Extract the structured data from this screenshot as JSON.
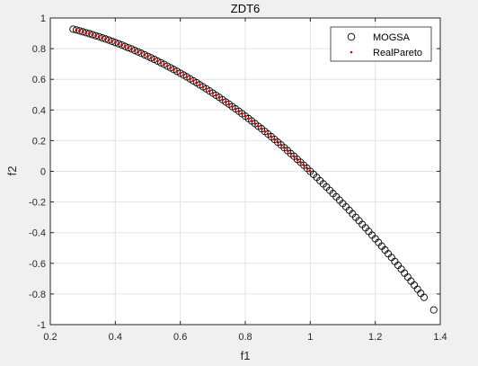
{
  "figure": {
    "background": "#f0f0f0"
  },
  "chart_data": {
    "type": "scatter",
    "title": "ZDT6",
    "xlabel": "f1",
    "ylabel": "f2",
    "xlim": [
      0.2,
      1.4
    ],
    "ylim": [
      -1,
      1
    ],
    "xticks": [
      0.2,
      0.4,
      0.6,
      0.8,
      1.0,
      1.2,
      1.4
    ],
    "xtick_labels": [
      "0.2",
      "0.4",
      "0.6",
      "0.8",
      "1",
      "1.2",
      "1.4"
    ],
    "yticks": [
      -1,
      -0.8,
      -0.6,
      -0.4,
      -0.2,
      0,
      0.2,
      0.4,
      0.6,
      0.8,
      1
    ],
    "ytick_labels": [
      "-1",
      "-0.8",
      "-0.6",
      "-0.4",
      "-0.2",
      "0",
      "0.2",
      "0.4",
      "0.6",
      "0.8",
      "1"
    ],
    "grid": true,
    "legend_position": "top-right",
    "colors": {
      "axes_bg": "#ffffff",
      "grid": "#e3e3e3",
      "axis": "#262626",
      "mogsa": "#000000",
      "realpareto": "#e00000"
    },
    "series": [
      {
        "name": "MOGSA",
        "marker": "circle-open",
        "x": [
          0.27,
          0.28,
          0.29,
          0.3,
          0.31,
          0.32,
          0.33,
          0.34,
          0.35,
          0.36,
          0.37,
          0.38,
          0.39,
          0.4,
          0.41,
          0.42,
          0.43,
          0.44,
          0.45,
          0.46,
          0.47,
          0.48,
          0.49,
          0.5,
          0.51,
          0.52,
          0.53,
          0.54,
          0.55,
          0.56,
          0.57,
          0.58,
          0.59,
          0.6,
          0.61,
          0.62,
          0.63,
          0.64,
          0.65,
          0.66,
          0.67,
          0.68,
          0.69,
          0.7,
          0.71,
          0.72,
          0.73,
          0.74,
          0.75,
          0.76,
          0.77,
          0.78,
          0.79,
          0.8,
          0.81,
          0.82,
          0.83,
          0.84,
          0.85,
          0.86,
          0.87,
          0.88,
          0.89,
          0.9,
          0.91,
          0.92,
          0.93,
          0.94,
          0.95,
          0.96,
          0.97,
          0.98,
          0.99,
          1.0,
          1.01,
          1.02,
          1.03,
          1.04,
          1.05,
          1.06,
          1.07,
          1.08,
          1.09,
          1.1,
          1.11,
          1.12,
          1.13,
          1.14,
          1.15,
          1.16,
          1.17,
          1.18,
          1.19,
          1.2,
          1.21,
          1.22,
          1.23,
          1.24,
          1.25,
          1.26,
          1.27,
          1.28,
          1.29,
          1.3,
          1.31,
          1.32,
          1.33,
          1.34,
          1.35,
          1.38
        ],
        "y": [
          0.927,
          0.922,
          0.916,
          0.91,
          0.904,
          0.898,
          0.891,
          0.884,
          0.878,
          0.87,
          0.863,
          0.856,
          0.848,
          0.84,
          0.832,
          0.824,
          0.815,
          0.806,
          0.798,
          0.788,
          0.779,
          0.77,
          0.76,
          0.75,
          0.74,
          0.73,
          0.719,
          0.708,
          0.698,
          0.686,
          0.675,
          0.664,
          0.652,
          0.64,
          0.628,
          0.616,
          0.603,
          0.59,
          0.578,
          0.564,
          0.551,
          0.538,
          0.524,
          0.51,
          0.496,
          0.482,
          0.467,
          0.452,
          0.438,
          0.422,
          0.407,
          0.392,
          0.376,
          0.36,
          0.344,
          0.328,
          0.311,
          0.294,
          0.278,
          0.26,
          0.243,
          0.226,
          0.208,
          0.19,
          0.172,
          0.154,
          0.135,
          0.116,
          0.098,
          0.078,
          0.059,
          0.04,
          0.02,
          0.0,
          -0.02,
          -0.04,
          -0.061,
          -0.082,
          -0.102,
          -0.124,
          -0.145,
          -0.166,
          -0.188,
          -0.21,
          -0.232,
          -0.254,
          -0.277,
          -0.3,
          -0.322,
          -0.346,
          -0.369,
          -0.392,
          -0.416,
          -0.44,
          -0.464,
          -0.488,
          -0.513,
          -0.538,
          -0.562,
          -0.588,
          -0.613,
          -0.638,
          -0.664,
          -0.69,
          -0.716,
          -0.742,
          -0.769,
          -0.796,
          -0.822,
          -0.904
        ]
      },
      {
        "name": "RealPareto",
        "marker": "dot",
        "x": [
          0.28,
          0.29,
          0.3,
          0.31,
          0.32,
          0.33,
          0.34,
          0.35,
          0.36,
          0.37,
          0.38,
          0.39,
          0.4,
          0.41,
          0.42,
          0.43,
          0.44,
          0.45,
          0.46,
          0.47,
          0.48,
          0.49,
          0.5,
          0.51,
          0.52,
          0.53,
          0.54,
          0.55,
          0.56,
          0.57,
          0.58,
          0.59,
          0.6,
          0.61,
          0.62,
          0.63,
          0.64,
          0.65,
          0.66,
          0.67,
          0.68,
          0.69,
          0.7,
          0.71,
          0.72,
          0.73,
          0.74,
          0.75,
          0.76,
          0.77,
          0.78,
          0.79,
          0.8,
          0.81,
          0.82,
          0.83,
          0.84,
          0.85,
          0.86,
          0.87,
          0.88,
          0.89,
          0.9,
          0.91,
          0.92,
          0.93,
          0.94,
          0.95,
          0.96,
          0.97,
          0.98,
          0.99,
          1.0
        ],
        "y": [
          0.922,
          0.916,
          0.91,
          0.904,
          0.898,
          0.891,
          0.884,
          0.878,
          0.87,
          0.863,
          0.856,
          0.848,
          0.84,
          0.832,
          0.824,
          0.815,
          0.806,
          0.798,
          0.788,
          0.779,
          0.77,
          0.76,
          0.75,
          0.74,
          0.73,
          0.719,
          0.708,
          0.698,
          0.686,
          0.675,
          0.664,
          0.652,
          0.64,
          0.628,
          0.616,
          0.603,
          0.59,
          0.578,
          0.564,
          0.551,
          0.538,
          0.524,
          0.51,
          0.496,
          0.482,
          0.467,
          0.452,
          0.438,
          0.422,
          0.407,
          0.392,
          0.376,
          0.36,
          0.344,
          0.328,
          0.311,
          0.294,
          0.278,
          0.26,
          0.243,
          0.226,
          0.208,
          0.19,
          0.172,
          0.154,
          0.135,
          0.116,
          0.098,
          0.078,
          0.059,
          0.04,
          0.02,
          0.0
        ]
      }
    ]
  }
}
